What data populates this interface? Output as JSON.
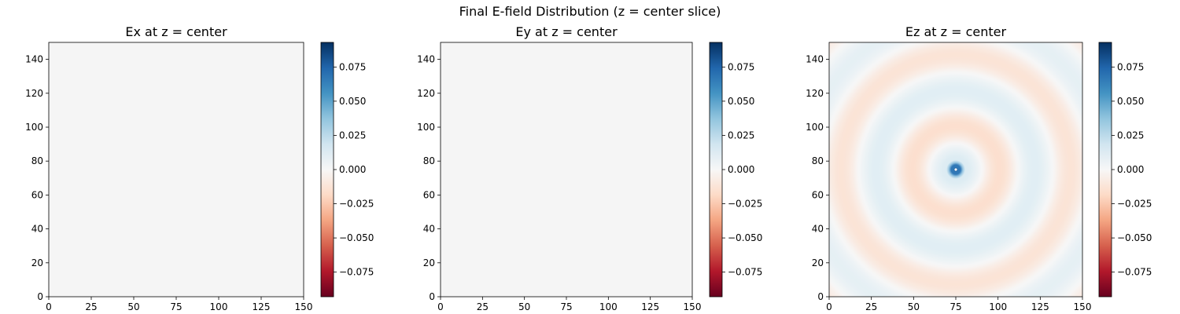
{
  "figure": {
    "suptitle": "Final E-field Distribution (z = center slice)"
  },
  "colors": {
    "neutral": "#f5f5f5",
    "colormap": [
      "#67001f",
      "#b2182b",
      "#d6604d",
      "#f4a582",
      "#fddbc7",
      "#f7f7f7",
      "#d1e5f0",
      "#92c5de",
      "#4393c3",
      "#2166ac",
      "#053061"
    ],
    "colormap_name": "RdBu"
  },
  "chart_data": [
    {
      "type": "heatmap",
      "title": "Ex at z = center",
      "field": "Ex",
      "pattern": "uniform",
      "value": 0.0,
      "xlim": [
        0,
        150
      ],
      "ylim": [
        0,
        150
      ],
      "xticks": [
        0,
        25,
        50,
        75,
        100,
        125,
        150
      ],
      "yticks": [
        0,
        20,
        40,
        60,
        80,
        100,
        120,
        140
      ],
      "colorbar": {
        "vmin": -0.093,
        "vmax": 0.093,
        "ticks": [
          0.075,
          0.05,
          0.025,
          0.0,
          -0.025,
          -0.05,
          -0.075
        ],
        "tick_labels": [
          "0.075",
          "0.050",
          "0.025",
          "0.000",
          "−0.025",
          "−0.050",
          "−0.075"
        ]
      }
    },
    {
      "type": "heatmap",
      "title": "Ey at z = center",
      "field": "Ey",
      "pattern": "uniform",
      "value": 0.0,
      "xlim": [
        0,
        150
      ],
      "ylim": [
        0,
        150
      ],
      "xticks": [
        0,
        25,
        50,
        75,
        100,
        125,
        150
      ],
      "yticks": [
        0,
        20,
        40,
        60,
        80,
        100,
        120,
        140
      ],
      "colorbar": {
        "vmin": -0.093,
        "vmax": 0.093,
        "ticks": [
          0.075,
          0.05,
          0.025,
          0.0,
          -0.025,
          -0.05,
          -0.075
        ],
        "tick_labels": [
          "0.075",
          "0.050",
          "0.025",
          "0.000",
          "−0.025",
          "−0.050",
          "−0.075"
        ]
      }
    },
    {
      "type": "heatmap",
      "title": "Ez at z = center",
      "field": "Ez",
      "pattern": "radial",
      "center": [
        75,
        75
      ],
      "peak_value": 0.093,
      "ring_wavelength": 42,
      "ring_amplitude": 0.012,
      "xlim": [
        0,
        150
      ],
      "ylim": [
        0,
        150
      ],
      "xticks": [
        0,
        25,
        50,
        75,
        100,
        125,
        150
      ],
      "yticks": [
        0,
        20,
        40,
        60,
        80,
        100,
        120,
        140
      ],
      "colorbar": {
        "vmin": -0.093,
        "vmax": 0.093,
        "ticks": [
          0.075,
          0.05,
          0.025,
          0.0,
          -0.025,
          -0.05,
          -0.075
        ],
        "tick_labels": [
          "0.075",
          "0.050",
          "0.025",
          "0.000",
          "−0.025",
          "−0.050",
          "−0.075"
        ]
      }
    }
  ]
}
